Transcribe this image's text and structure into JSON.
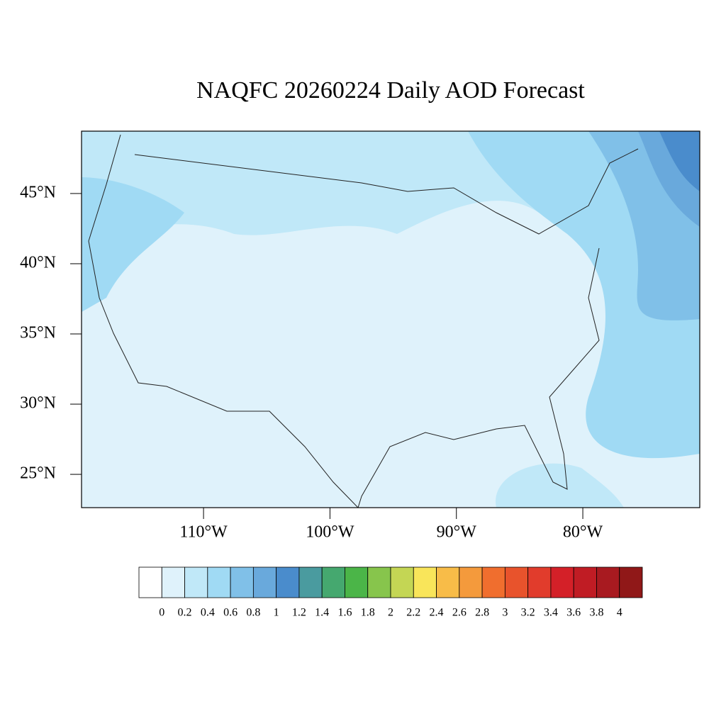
{
  "chart_data": {
    "type": "map",
    "title": "NAQFC 20260224 Daily AOD Forecast",
    "xlim": [
      -119.65,
      -70.75
    ],
    "ylim": [
      22.63,
      49.44
    ],
    "xticks": [
      {
        "value": -110,
        "label": "110°W"
      },
      {
        "value": -100,
        "label": "100°W"
      },
      {
        "value": -90,
        "label": "90°W"
      },
      {
        "value": -80,
        "label": "80°W"
      }
    ],
    "yticks": [
      {
        "value": 25,
        "label": "25°N"
      },
      {
        "value": 30,
        "label": "30°N"
      },
      {
        "value": 35,
        "label": "35°N"
      },
      {
        "value": 40,
        "label": "40°N"
      },
      {
        "value": 45,
        "label": "45°N"
      }
    ],
    "colorbar": {
      "levels": [
        0,
        0.2,
        0.4,
        0.6,
        0.8,
        1,
        1.2,
        1.4,
        1.6,
        1.8,
        2,
        2.2,
        2.4,
        2.6,
        2.8,
        3,
        3.2,
        3.4,
        3.6,
        3.8,
        4
      ],
      "colors": [
        "#ffffff",
        "#dff2fb",
        "#c0e8f8",
        "#a0daf4",
        "#80c0e8",
        "#69a9dc",
        "#4a8ccc",
        "#4a9b9f",
        "#45a86f",
        "#4bb548",
        "#87c54c",
        "#c4d654",
        "#f9e55a",
        "#f8bc48",
        "#f49a3c",
        "#f06e2e",
        "#e8532c",
        "#e13c2c",
        "#d42028",
        "#c01c24",
        "#a81a20",
        "#901818"
      ]
    }
  }
}
